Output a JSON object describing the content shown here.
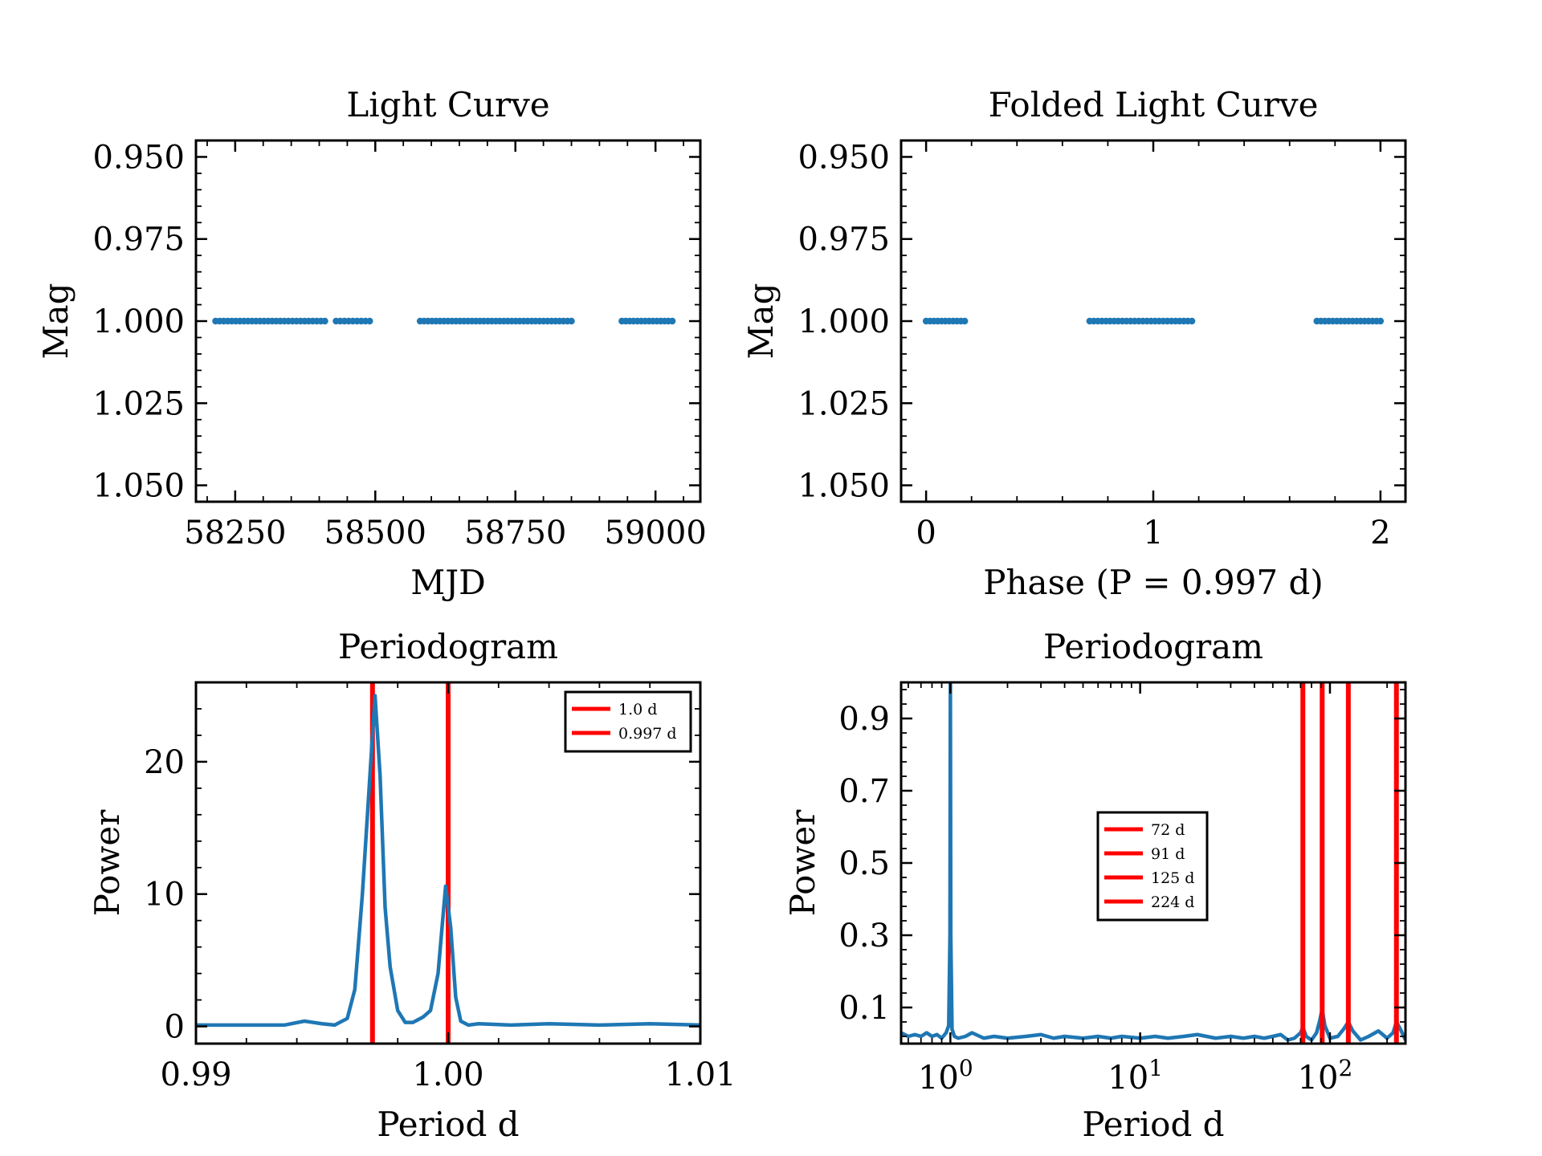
{
  "chart_data": [
    {
      "type": "scatter",
      "title": "Light Curve",
      "xlabel": "MJD",
      "ylabel": "Mag",
      "xlim": [
        58180,
        59080
      ],
      "ylim": [
        1.055,
        0.945
      ],
      "y_inverted": true,
      "xticks": [
        58250,
        58500,
        58750,
        59000
      ],
      "xtick_labels": [
        "58250",
        "58500",
        "58750",
        "59000"
      ],
      "yticks": [
        0.95,
        0.975,
        1.0,
        1.025,
        1.05
      ],
      "ytick_labels": [
        "0.950",
        "0.975",
        "1.000",
        "1.025",
        "1.050"
      ],
      "color": "#1f77b4",
      "points": {
        "y": 1.0,
        "x_segments": [
          [
            58215,
            58410
          ],
          [
            58430,
            58490
          ],
          [
            58580,
            58850
          ],
          [
            58940,
            59030
          ]
        ]
      }
    },
    {
      "type": "scatter",
      "title": "Folded Light Curve",
      "xlabel": "Phase (P = 0.997 d)",
      "ylabel": "Mag",
      "xlim": [
        -0.11,
        2.11
      ],
      "ylim": [
        1.055,
        0.945
      ],
      "y_inverted": true,
      "xticks": [
        0,
        1,
        2
      ],
      "xtick_labels": [
        "0",
        "1",
        "2"
      ],
      "yticks": [
        0.95,
        0.975,
        1.0,
        1.025,
        1.05
      ],
      "ytick_labels": [
        "0.950",
        "0.975",
        "1.000",
        "1.025",
        "1.050"
      ],
      "color": "#1f77b4",
      "points": {
        "y": 1.0,
        "x_segments": [
          [
            0.0,
            0.17
          ],
          [
            0.72,
            1.17
          ],
          [
            1.72,
            2.0
          ]
        ]
      }
    },
    {
      "type": "line",
      "title": "Periodogram",
      "xlabel": "Period d",
      "ylabel": "Power",
      "xlim": [
        0.99,
        1.01
      ],
      "ylim": [
        -1.3,
        26
      ],
      "xticks": [
        0.99,
        1.0,
        1.01
      ],
      "xtick_labels": [
        "0.99",
        "1.00",
        "1.01"
      ],
      "yticks": [
        0,
        10,
        20
      ],
      "ytick_labels": [
        "0",
        "10",
        "20"
      ],
      "color": "#1f77b4",
      "series": [
        {
          "x": [
            0.99,
            0.992,
            0.9935,
            0.9943,
            0.995,
            0.9955,
            0.996,
            0.9963,
            0.9966,
            0.9969,
            0.9971,
            0.9973,
            0.9975,
            0.9977,
            0.998,
            0.9983,
            0.9986,
            0.999,
            0.9993,
            0.9996,
            0.9999,
            1.0001,
            1.0003,
            1.0005,
            1.0008,
            1.0012,
            1.0025,
            1.004,
            1.006,
            1.008,
            1.01
          ],
          "y": [
            0.1,
            0.1,
            0.1,
            0.4,
            0.2,
            0.1,
            0.6,
            2.8,
            10,
            19,
            25,
            19,
            9,
            4.5,
            1.2,
            0.3,
            0.3,
            0.7,
            1.2,
            4,
            10.6,
            7.5,
            2.2,
            0.4,
            0.1,
            0.2,
            0.1,
            0.2,
            0.1,
            0.2,
            0.1
          ]
        }
      ],
      "vlines": [
        {
          "x": 0.997,
          "label": "0.997 d",
          "color": "#ff0000"
        },
        {
          "x": 1.0,
          "label": "1.0 d",
          "color": "#ff0000"
        }
      ],
      "legend": {
        "position": "top-right",
        "entries": [
          "1.0 d",
          "0.997 d"
        ]
      }
    },
    {
      "type": "line",
      "title": "Periodogram",
      "xlabel": "Period d",
      "ylabel": "Power",
      "x_scale": "log",
      "xlim": [
        0.55,
        250
      ],
      "ylim": [
        0.0,
        1.0
      ],
      "xticks": [
        1,
        10,
        100
      ],
      "xtick_labels": [
        {
          "base": "10",
          "exp": "0"
        },
        {
          "base": "10",
          "exp": "1"
        },
        {
          "base": "10",
          "exp": "2"
        }
      ],
      "yticks": [
        0.1,
        0.3,
        0.5,
        0.7,
        0.9
      ],
      "ytick_labels": [
        "0.1",
        "0.3",
        "0.5",
        "0.7",
        "0.9"
      ],
      "color": "#1f77b4",
      "series": [
        {
          "x": [
            0.55,
            0.6,
            0.65,
            0.7,
            0.75,
            0.8,
            0.85,
            0.9,
            0.95,
            0.98,
            0.995,
            1.0,
            1.005,
            1.02,
            1.05,
            1.1,
            1.2,
            1.3,
            1.5,
            1.7,
            2.0,
            2.5,
            3.0,
            3.5,
            4.0,
            5.0,
            6.0,
            7.0,
            8.0,
            10,
            12,
            14,
            17,
            20,
            25,
            30,
            35,
            40,
            45,
            50,
            55,
            60,
            65,
            70,
            72,
            75,
            80,
            85,
            88,
            91,
            94,
            100,
            110,
            118,
            125,
            132,
            145,
            160,
            180,
            200,
            215,
            224,
            235,
            250
          ],
          "y": [
            0.03,
            0.02,
            0.025,
            0.02,
            0.03,
            0.02,
            0.025,
            0.015,
            0.03,
            0.05,
            0.3,
            1.0,
            0.3,
            0.04,
            0.02,
            0.015,
            0.02,
            0.03,
            0.015,
            0.02,
            0.015,
            0.02,
            0.025,
            0.015,
            0.02,
            0.015,
            0.02,
            0.015,
            0.02,
            0.015,
            0.02,
            0.015,
            0.02,
            0.025,
            0.015,
            0.02,
            0.015,
            0.02,
            0.015,
            0.02,
            0.025,
            0.01,
            0.015,
            0.03,
            0.045,
            0.02,
            0.01,
            0.03,
            0.06,
            0.095,
            0.05,
            0.015,
            0.02,
            0.04,
            0.06,
            0.035,
            0.01,
            0.02,
            0.035,
            0.015,
            0.03,
            0.06,
            0.04,
            0.01
          ]
        }
      ],
      "vlines": [
        {
          "x": 72,
          "label": "72 d",
          "color": "#ff0000"
        },
        {
          "x": 91,
          "label": "91 d",
          "color": "#ff0000"
        },
        {
          "x": 125,
          "label": "125 d",
          "color": "#ff0000"
        },
        {
          "x": 224,
          "label": "224 d",
          "color": "#ff0000"
        }
      ],
      "legend": {
        "position": "center",
        "entries": [
          "72 d",
          "91 d",
          "125 d",
          "224 d"
        ]
      }
    }
  ]
}
